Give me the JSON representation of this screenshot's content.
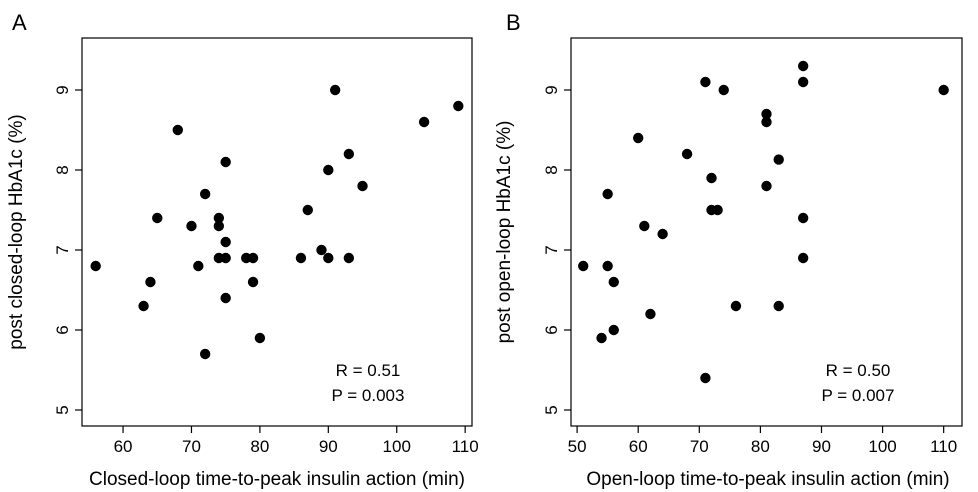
{
  "chart_data": [
    {
      "panel": "A",
      "type": "scatter",
      "xlabel": "Closed-loop time-to-peak insulin action (min)",
      "ylabel": "post closed-loop HbA1c (%)",
      "xticks": [
        "60",
        "70",
        "80",
        "90",
        "100",
        "110"
      ],
      "yticks": [
        "5",
        "6",
        "7",
        "8",
        "9"
      ],
      "xlim": [
        54,
        111
      ],
      "ylim": [
        4.8,
        9.65
      ],
      "annotation": [
        "R = 0.51",
        "P = 0.003"
      ],
      "points": [
        [
          56,
          6.8
        ],
        [
          63,
          6.3
        ],
        [
          64,
          6.6
        ],
        [
          65,
          7.4
        ],
        [
          68,
          8.5
        ],
        [
          70,
          7.3
        ],
        [
          71,
          6.8
        ],
        [
          72,
          7.7
        ],
        [
          72,
          5.7
        ],
        [
          74,
          7.4
        ],
        [
          74,
          7.3
        ],
        [
          74,
          6.9
        ],
        [
          75,
          8.1
        ],
        [
          75,
          7.1
        ],
        [
          75,
          6.9
        ],
        [
          75,
          6.4
        ],
        [
          78,
          6.9
        ],
        [
          79,
          6.9
        ],
        [
          79,
          6.6
        ],
        [
          80,
          5.9
        ],
        [
          86,
          6.9
        ],
        [
          87,
          7.5
        ],
        [
          89,
          7.0
        ],
        [
          90,
          8.0
        ],
        [
          90,
          6.9
        ],
        [
          91,
          9.0
        ],
        [
          93,
          8.2
        ],
        [
          93,
          6.9
        ],
        [
          95,
          7.8
        ],
        [
          104,
          8.6
        ],
        [
          109,
          8.8
        ]
      ]
    },
    {
      "panel": "B",
      "type": "scatter",
      "xlabel": "Open-loop time-to-peak insulin action (min)",
      "ylabel": "post open-loop HbA1c (%)",
      "xticks": [
        "50",
        "60",
        "70",
        "80",
        "90",
        "100",
        "110"
      ],
      "yticks": [
        "5",
        "6",
        "7",
        "8",
        "9"
      ],
      "xlim": [
        49,
        113
      ],
      "ylim": [
        4.8,
        9.65
      ],
      "annotation": [
        "R = 0.50",
        "P = 0.007"
      ],
      "points": [
        [
          51,
          6.8
        ],
        [
          54,
          5.9
        ],
        [
          55,
          7.7
        ],
        [
          55,
          6.8
        ],
        [
          56,
          6.6
        ],
        [
          56,
          6.0
        ],
        [
          60,
          8.4
        ],
        [
          61,
          7.3
        ],
        [
          62,
          6.2
        ],
        [
          64,
          7.2
        ],
        [
          68,
          8.2
        ],
        [
          71,
          9.1
        ],
        [
          71,
          5.4
        ],
        [
          72,
          7.9
        ],
        [
          72,
          7.5
        ],
        [
          73,
          7.5
        ],
        [
          74,
          9.0
        ],
        [
          76,
          6.3
        ],
        [
          81,
          8.7
        ],
        [
          81,
          8.6
        ],
        [
          81,
          7.8
        ],
        [
          83,
          8.13
        ],
        [
          83,
          6.3
        ],
        [
          87,
          9.3
        ],
        [
          87,
          9.1
        ],
        [
          87,
          7.4
        ],
        [
          87,
          6.9
        ],
        [
          110,
          9.0
        ]
      ]
    }
  ]
}
